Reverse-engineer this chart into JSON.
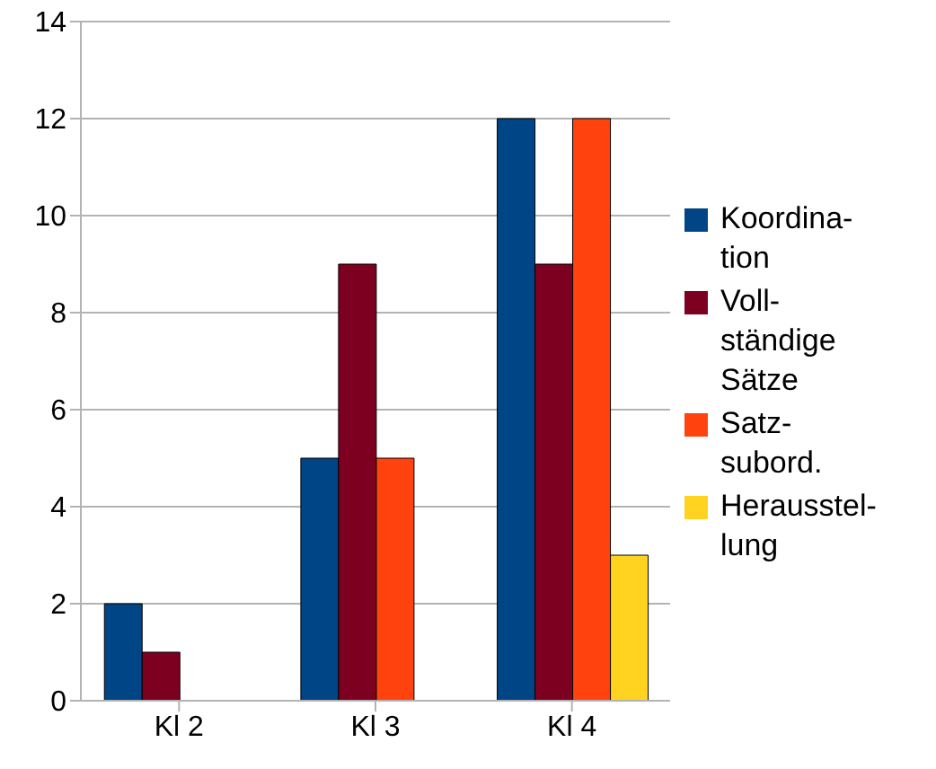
{
  "chart_data": {
    "type": "bar",
    "categories": [
      "Kl 2",
      "Kl 3",
      "Kl 4"
    ],
    "series": [
      {
        "name": "Koordina-\ntion",
        "color": "#004586",
        "values": [
          2,
          5,
          12
        ]
      },
      {
        "name": "Voll-\nständige\nSätze",
        "color": "#7e0021",
        "values": [
          1,
          9,
          9
        ]
      },
      {
        "name": "Satz-\nsubord.",
        "color": "#ff420e",
        "values": [
          0,
          5,
          12
        ]
      },
      {
        "name": "Herausstel-\nlung",
        "color": "#ffd320",
        "values": [
          0,
          0,
          3
        ]
      }
    ],
    "ylim": [
      0,
      14
    ],
    "yticks": [
      0,
      2,
      4,
      6,
      8,
      10,
      12,
      14
    ],
    "grid": "y",
    "legend": "right"
  }
}
